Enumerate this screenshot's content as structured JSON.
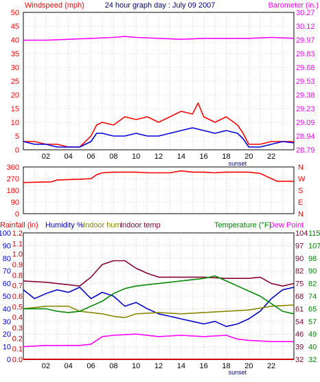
{
  "colors": {
    "bg": "#ffffff",
    "frame": "#000000",
    "wind_avg": "#0000dd",
    "wind_gust": "#ff0000",
    "barometer": "#ff00ff",
    "direction": "#ff0000",
    "rain": "#cc0000",
    "humidity": "#0000cc",
    "indoor_hum": "#888800",
    "indoor_temp": "#880033",
    "temperature": "#008800",
    "dew_point": "#ff00ff",
    "title": "#000080"
  },
  "chart_data": [
    {
      "type": "line",
      "panel": "wind_barometer",
      "title": "24 hour graph day : July 09 2007",
      "left_axis_label": "Windspeed (mph)",
      "right_axis_label": "Barometer (in.)",
      "ylim_left": [
        0,
        50
      ],
      "yticks_left": [
        "50",
        "45",
        "40",
        "35",
        "30",
        "25",
        "20",
        "15",
        "10",
        "5",
        "0"
      ],
      "ylim_right": [
        28.79,
        30.27
      ],
      "yticks_right": [
        "30.27",
        "30.12",
        "29.97",
        "29.83",
        "29.68",
        "29.53",
        "29.38",
        "29.23",
        "29.09",
        "28.94",
        "28.79"
      ],
      "x_range_hours": [
        0,
        24
      ],
      "xticks": [
        "02",
        "04",
        "06",
        "08",
        "10",
        "12",
        "14",
        "16",
        "18",
        "20",
        "22"
      ],
      "x_annotation": "sunset",
      "grid": true,
      "series": [
        {
          "name": "Windspeed",
          "key": "wind_avg",
          "x": [
            0,
            1,
            2,
            3,
            4,
            5,
            6,
            6.5,
            7,
            8,
            9,
            10,
            11,
            12,
            13,
            14,
            15,
            16,
            17,
            18,
            19,
            19.5,
            20,
            21,
            22,
            23,
            24
          ],
          "y": [
            3,
            2,
            2,
            1,
            1,
            1,
            3,
            6,
            6,
            5,
            5,
            6,
            5,
            5,
            6,
            7,
            8,
            7,
            6,
            7,
            6,
            4,
            1,
            1,
            2,
            3,
            2.5
          ]
        },
        {
          "name": "Gust",
          "key": "wind_gust",
          "x": [
            0,
            1,
            2,
            3,
            4,
            5,
            6,
            6.5,
            7,
            8,
            9,
            10,
            11,
            12,
            13,
            14,
            15,
            15.5,
            16,
            17,
            18,
            19,
            19.5,
            20,
            21,
            22,
            23,
            24
          ],
          "y": [
            3,
            3,
            2,
            2,
            1,
            1,
            5,
            9,
            10,
            9,
            12,
            11,
            12,
            10,
            12,
            14,
            13,
            17,
            12,
            10,
            12,
            9,
            6,
            2,
            2,
            3,
            3,
            3
          ]
        },
        {
          "name": "Barometer",
          "key": "barometer",
          "x": [
            0,
            2,
            4,
            6,
            8,
            9,
            10,
            12,
            14,
            16,
            18,
            20,
            22,
            24
          ],
          "y": [
            29.97,
            29.97,
            29.98,
            29.99,
            30.0,
            30.01,
            30.0,
            29.99,
            29.98,
            29.99,
            29.99,
            29.99,
            30.0,
            29.99
          ]
        }
      ]
    },
    {
      "type": "line",
      "panel": "wind_direction",
      "ylim": [
        0,
        360
      ],
      "yticks_left": [
        "360",
        "270",
        "180",
        "90",
        "0"
      ],
      "right_labels": [
        "N",
        "W",
        "S",
        "E",
        "N"
      ],
      "x_range_hours": [
        0,
        24
      ],
      "grid": true,
      "series": [
        {
          "name": "Wind Direction",
          "key": "direction",
          "x": [
            0,
            2.5,
            3,
            5,
            6,
            6.5,
            7,
            8,
            9,
            10,
            11,
            12,
            13,
            14,
            15,
            16,
            17,
            18,
            19,
            20,
            21,
            22,
            22.5,
            24
          ],
          "y": [
            240,
            245,
            260,
            265,
            270,
            300,
            315,
            320,
            320,
            320,
            315,
            315,
            315,
            330,
            320,
            320,
            315,
            320,
            320,
            320,
            310,
            270,
            250,
            250
          ]
        }
      ]
    },
    {
      "type": "line",
      "panel": "humidity_temperature",
      "title_labels": [
        "Rainfall (in)",
        "Humidity %",
        "Indoor hum",
        "Indoor temp",
        "Temperature (°F)",
        "Dew Point"
      ],
      "ylim_humidity": [
        0,
        100
      ],
      "yticks_humidity": [
        "100",
        "90",
        "80",
        "70",
        "60",
        "50",
        "40",
        "30",
        "20",
        "10",
        "0"
      ],
      "ylim_rain": [
        0,
        1.2
      ],
      "yticks_rain": [
        "1.2",
        "1.1",
        "1.0",
        "0.9",
        "0.8",
        "0.7",
        "0.6",
        "0.5",
        "0.4",
        "0.3",
        "0.2",
        "0.1",
        "0.0"
      ],
      "ylim_temperature": [
        32,
        115
      ],
      "yticks_temp_a": [
        "104",
        "97",
        "90",
        "82",
        "75",
        "68",
        "61",
        "54",
        "46",
        "39",
        "32"
      ],
      "yticks_temp_b": [
        "115",
        "107",
        "98",
        "90",
        "82",
        "74",
        "65",
        "57",
        "49",
        "40",
        "32"
      ],
      "x_range_hours": [
        0,
        24
      ],
      "xticks": [
        "02",
        "04",
        "06",
        "08",
        "10",
        "12",
        "14",
        "16",
        "18",
        "20",
        "22"
      ],
      "x_annotation": "sunset",
      "grid": true,
      "series": [
        {
          "name": "Rainfall",
          "key": "rain",
          "x": [
            0,
            24
          ],
          "y": [
            0.0,
            0.0
          ],
          "scale": "rain"
        },
        {
          "name": "Humidity",
          "key": "humidity",
          "x": [
            0,
            1,
            2,
            3,
            4,
            5,
            6,
            7,
            8,
            9,
            10,
            11,
            12,
            13,
            14,
            15,
            16,
            17,
            18,
            19,
            20,
            21,
            22,
            23,
            24
          ],
          "y": [
            55,
            48,
            52,
            55,
            53,
            57,
            48,
            53,
            50,
            42,
            45,
            40,
            36,
            34,
            32,
            30,
            28,
            30,
            26,
            28,
            32,
            38,
            48,
            55,
            57
          ],
          "scale": "humidity"
        },
        {
          "name": "Indoor hum",
          "key": "indoor_hum",
          "x": [
            0,
            2,
            4,
            5,
            6,
            7,
            8,
            9,
            10,
            12,
            14,
            16,
            18,
            20,
            22,
            24
          ],
          "y": [
            40,
            42,
            42,
            38,
            37,
            36,
            34,
            33,
            36,
            37,
            36,
            37,
            38,
            39,
            42,
            43
          ],
          "scale": "humidity"
        },
        {
          "name": "Indoor temp",
          "key": "indoor_temp",
          "x": [
            0,
            2,
            4,
            5,
            6,
            7,
            8,
            9,
            10,
            11,
            12,
            14,
            16,
            18,
            20,
            21,
            22,
            23,
            24
          ],
          "y": [
            62,
            61,
            59,
            58,
            65,
            75,
            78,
            78,
            72,
            68,
            65,
            65,
            65,
            64,
            64,
            65,
            60,
            58,
            60
          ],
          "scale": "humidity"
        },
        {
          "name": "Temperature",
          "key": "temperature",
          "x": [
            0,
            1,
            2,
            3,
            4,
            5,
            6,
            7,
            8,
            9,
            10,
            12,
            14,
            16,
            17,
            18,
            19,
            20,
            21,
            22,
            23,
            24
          ],
          "y": [
            40,
            40,
            40,
            38,
            37,
            38,
            42,
            46,
            52,
            56,
            58,
            60,
            62,
            64,
            66,
            62,
            58,
            54,
            50,
            44,
            38,
            36
          ],
          "scale": "humidity"
        },
        {
          "name": "Dew Point",
          "key": "dew_point",
          "x": [
            0,
            2,
            4,
            5,
            6,
            7,
            8,
            10,
            12,
            14,
            16,
            18,
            19,
            20,
            22,
            24
          ],
          "y": [
            10,
            11,
            11,
            11,
            12,
            18,
            19,
            20,
            18,
            19,
            18,
            19,
            16,
            15,
            14,
            14
          ],
          "scale": "humidity"
        }
      ]
    }
  ]
}
